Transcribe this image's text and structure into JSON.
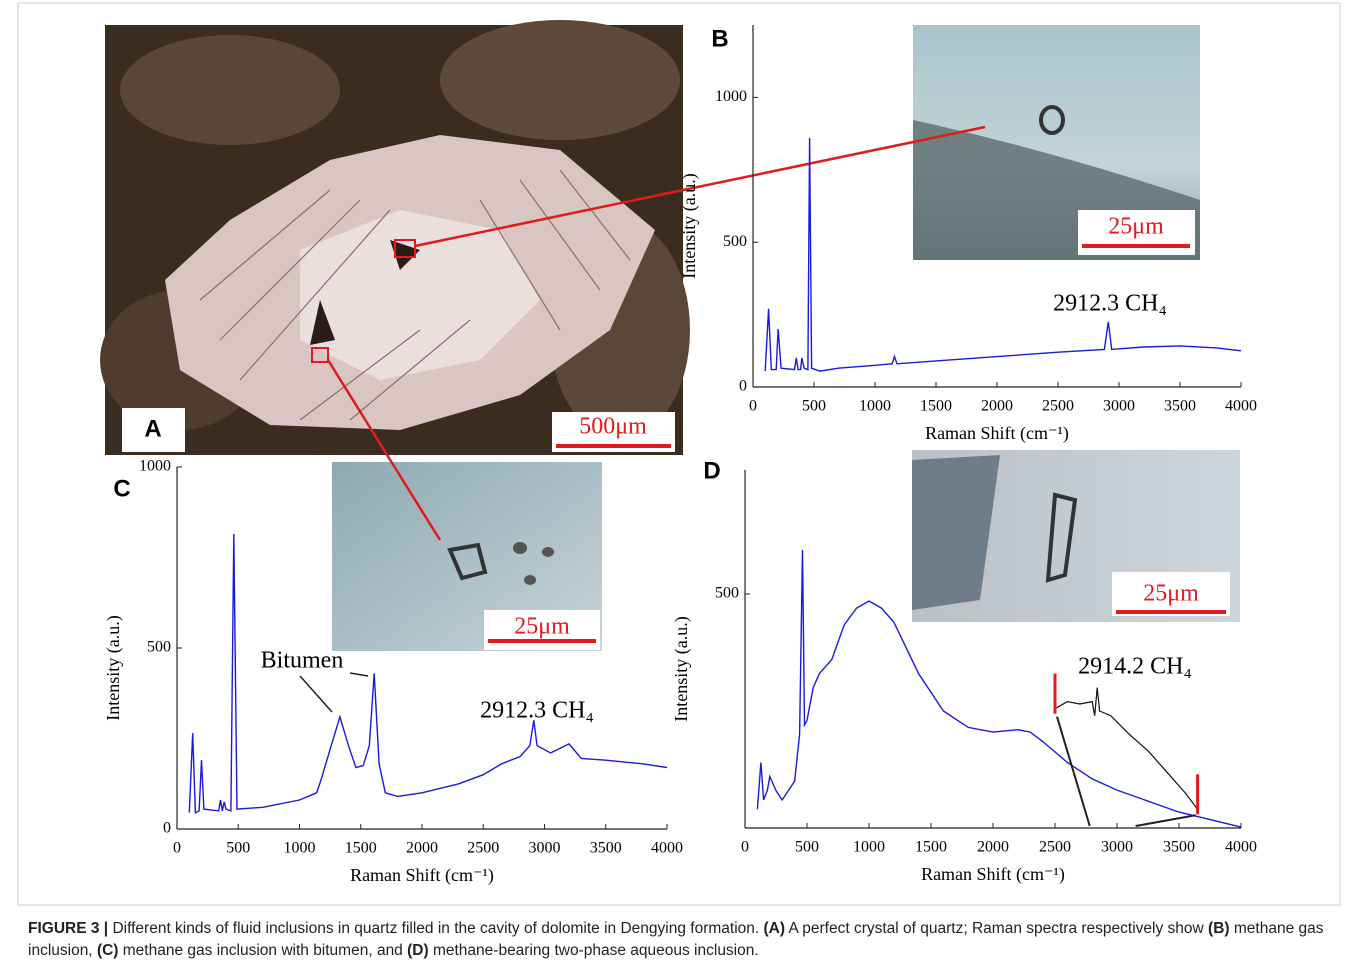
{
  "panel_a": {
    "label": "A",
    "scale_bar": "500μm"
  },
  "chart_data": [
    {
      "type": "line",
      "label": "B",
      "x_label": "Raman Shift (cm⁻¹)",
      "y_label": "Intensity (a.u.)",
      "color": "#1a1adb",
      "xlim": [
        0,
        4000
      ],
      "ylim": [
        0,
        1250
      ],
      "xticks": [
        0,
        500,
        1000,
        1500,
        2000,
        2500,
        3000,
        3500,
        4000
      ],
      "yticks": [
        0,
        500,
        1000
      ],
      "x": [
        100,
        128,
        150,
        190,
        206,
        230,
        340,
        355,
        370,
        390,
        400,
        420,
        450,
        464,
        480,
        550,
        700,
        1000,
        1140,
        1160,
        1180,
        1500,
        2000,
        2500,
        2880,
        2912.3,
        2940,
        3200,
        3500,
        3800,
        4000
      ],
      "values": [
        55,
        270,
        60,
        60,
        200,
        65,
        60,
        100,
        60,
        60,
        100,
        65,
        60,
        860,
        65,
        55,
        65,
        75,
        80,
        105,
        80,
        90,
        105,
        120,
        130,
        225,
        130,
        138,
        142,
        135,
        125
      ],
      "annotations": [
        "2912.3 CH₄"
      ],
      "inset_scale_bar": "25μm"
    },
    {
      "type": "line",
      "label": "C",
      "x_label": "Raman Shift (cm⁻¹)",
      "y_label": "Intensity (a.u.)",
      "color": "#1a1adb",
      "xlim": [
        0,
        4000
      ],
      "ylim": [
        0,
        1000
      ],
      "xticks": [
        0,
        500,
        1000,
        1500,
        2000,
        2500,
        3000,
        3500,
        4000
      ],
      "yticks": [
        0,
        500,
        1000
      ],
      "x": [
        100,
        128,
        150,
        180,
        200,
        220,
        340,
        355,
        370,
        385,
        400,
        440,
        464,
        490,
        700,
        1000,
        1140,
        1160,
        1180,
        1250,
        1330,
        1400,
        1460,
        1520,
        1570,
        1610,
        1650,
        1700,
        1800,
        2000,
        2300,
        2500,
        2650,
        2800,
        2880,
        2912.3,
        2940,
        3050,
        3200,
        3300,
        3500,
        3800,
        4000
      ],
      "values": [
        45,
        265,
        45,
        50,
        190,
        55,
        50,
        80,
        50,
        75,
        55,
        50,
        815,
        55,
        60,
        80,
        100,
        120,
        140,
        220,
        310,
        230,
        170,
        175,
        230,
        430,
        180,
        100,
        90,
        100,
        125,
        150,
        180,
        200,
        230,
        300,
        230,
        210,
        235,
        195,
        190,
        180,
        170
      ],
      "annotations": [
        "Bitumen",
        "2912.3 CH₄"
      ],
      "inset_scale_bar": "25μm"
    },
    {
      "type": "line",
      "label": "D",
      "x_label": "Raman Shift (cm⁻¹)",
      "y_label": "Intensity (a.u.)",
      "color": "#1a1adb",
      "xlim": [
        0,
        4000
      ],
      "ylim": [
        0,
        765
      ],
      "xticks": [
        0,
        500,
        1000,
        1500,
        2000,
        2500,
        3000,
        3500,
        4000
      ],
      "yticks": [
        500
      ],
      "x": [
        100,
        128,
        150,
        180,
        200,
        250,
        300,
        400,
        440,
        464,
        480,
        500,
        550,
        600,
        700,
        800,
        900,
        1000,
        1100,
        1200,
        1400,
        1600,
        1800,
        2000,
        2200,
        2300,
        2400,
        2600,
        2800,
        3000,
        3500,
        4000
      ],
      "values": [
        40,
        140,
        60,
        80,
        110,
        80,
        60,
        100,
        200,
        594,
        220,
        230,
        300,
        330,
        360,
        434,
        470,
        485,
        470,
        440,
        330,
        250,
        215,
        205,
        210,
        205,
        185,
        140,
        105,
        81,
        34,
        2
      ],
      "overlay": {
        "color": "#111111",
        "marker_color": "#e01b1b",
        "x": [
          2500,
          2600,
          2700,
          2800,
          2820,
          2840,
          2860,
          2950,
          3100,
          3250,
          3400,
          3550,
          3650
        ],
        "values": [
          255,
          270,
          265,
          270,
          240,
          300,
          250,
          240,
          200,
          165,
          120,
          75,
          40
        ]
      },
      "annotations": [
        "2914.2 CH₄"
      ],
      "inset_scale_bar": "25μm"
    }
  ],
  "caption": [
    {
      "text": "FIGURE 3 |",
      "bold": true
    },
    {
      "text": " Different kinds of fluid inclusions in quartz filled in the cavity of dolomite in Dengying formation. ",
      "bold": false
    },
    {
      "text": "(A)",
      "bold": true
    },
    {
      "text": " A perfect crystal of quartz; Raman spectra respectively show ",
      "bold": false
    },
    {
      "text": "(B)",
      "bold": true
    },
    {
      "text": " methane gas inclusion, ",
      "bold": false
    },
    {
      "text": "(C)",
      "bold": true
    },
    {
      "text": " methane gas inclusion with bitumen, and ",
      "bold": false
    },
    {
      "text": "(D)",
      "bold": true
    },
    {
      "text": " methane-bearing two-phase aqueous inclusion.",
      "bold": false
    }
  ]
}
